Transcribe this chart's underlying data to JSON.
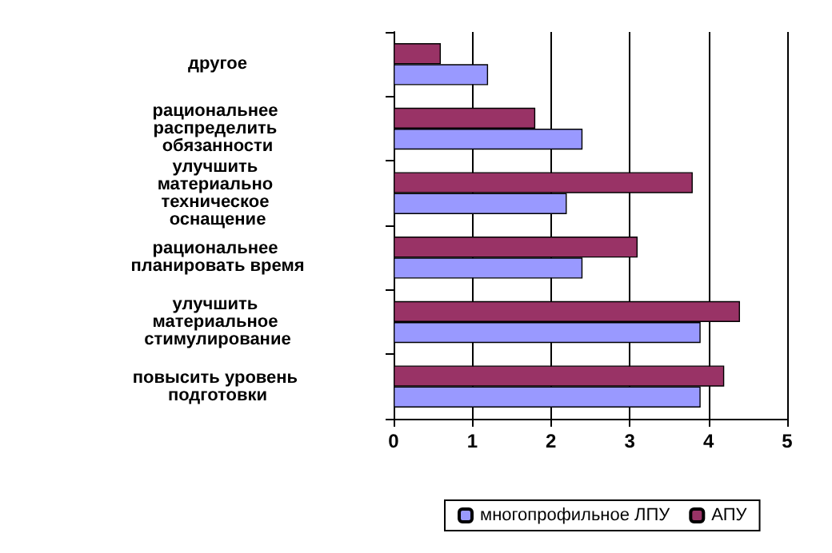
{
  "chart_data": {
    "type": "bar",
    "orientation": "horizontal",
    "categories": [
      "другое",
      "рациональнее распределить обязанности",
      "улучшить материально техническое оснащение",
      "рациональнее планировать время",
      "улучшить материальное стимулирование",
      "повысить уровень подготовки"
    ],
    "series": [
      {
        "name": "многопрофильное ЛПУ",
        "color": "#9999ff",
        "values": [
          1.2,
          2.4,
          2.2,
          2.4,
          3.9,
          3.9
        ]
      },
      {
        "name": "АПУ",
        "color": "#993366",
        "values": [
          0.6,
          1.8,
          3.8,
          3.1,
          4.4,
          4.2
        ]
      }
    ],
    "xlim": [
      0,
      5
    ],
    "xticks": [
      0,
      1,
      2,
      3,
      4,
      5
    ],
    "grid": "x",
    "legend": "bottom"
  }
}
